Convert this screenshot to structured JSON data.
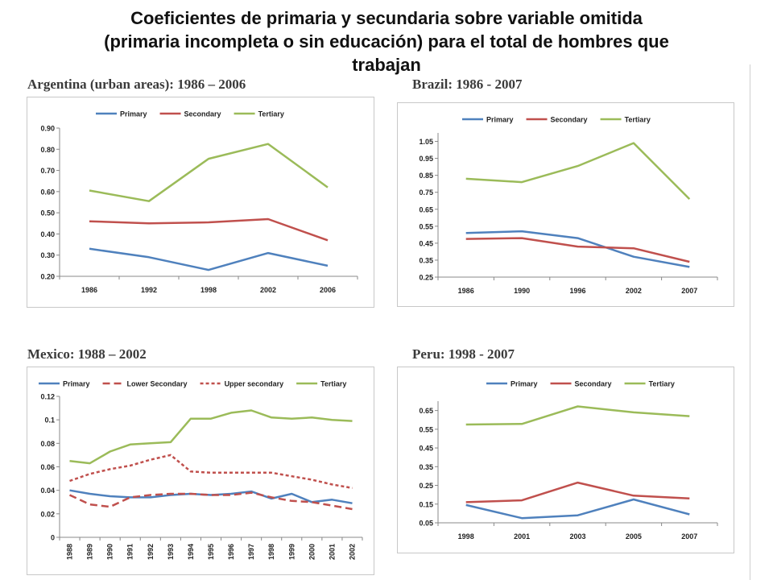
{
  "title_lines": [
    "Coeficientes de primaria y secundaria sobre variable omitida",
    "(primaria incompleta o sin educación) para el total de hombres que",
    "trabajan"
  ],
  "colors": {
    "primary": "#4f81bd",
    "secondary": "#c0504d",
    "tertiary": "#9bbb59",
    "lower_secondary": "#c0504d",
    "upper_secondary": "#c0504d"
  },
  "chart_data": [
    {
      "type": "line",
      "title": "Argentina (urban areas): 1986 – 2006",
      "categories": [
        "1986",
        "1992",
        "1998",
        "2002",
        "2006"
      ],
      "ylim": [
        0.2,
        0.9
      ],
      "yticks": [
        "0.20",
        "0.30",
        "0.40",
        "0.50",
        "0.60",
        "0.70",
        "0.80",
        "0.90"
      ],
      "legend": "top-center",
      "series": [
        {
          "name": "Primary",
          "color": "#4f81bd",
          "values": [
            0.33,
            0.29,
            0.23,
            0.31,
            0.25
          ]
        },
        {
          "name": "Secondary",
          "color": "#c0504d",
          "values": [
            0.46,
            0.45,
            0.455,
            0.47,
            0.37
          ]
        },
        {
          "name": "Tertiary",
          "color": "#9bbb59",
          "values": [
            0.605,
            0.555,
            0.755,
            0.825,
            0.62
          ]
        }
      ]
    },
    {
      "type": "line",
      "title": "Brazil: 1986 - 2007",
      "categories": [
        "1986",
        "1990",
        "1996",
        "2002",
        "2007"
      ],
      "ylim": [
        0.25,
        1.1
      ],
      "yticks": [
        "0.25",
        "0.35",
        "0.45",
        "0.55",
        "0.65",
        "0.75",
        "0.85",
        "0.95",
        "1.05"
      ],
      "legend": "top-center",
      "series": [
        {
          "name": "Primary",
          "color": "#4f81bd",
          "values": [
            0.51,
            0.52,
            0.48,
            0.37,
            0.31
          ]
        },
        {
          "name": "Secondary",
          "color": "#c0504d",
          "values": [
            0.475,
            0.48,
            0.43,
            0.42,
            0.34
          ]
        },
        {
          "name": "Tertiary",
          "color": "#9bbb59",
          "values": [
            0.83,
            0.81,
            0.905,
            1.04,
            0.71
          ]
        }
      ]
    },
    {
      "type": "line",
      "title": "Mexico: 1988 – 2002",
      "categories": [
        "1988",
        "1989",
        "1990",
        "1991",
        "1992",
        "1993",
        "1994",
        "1995",
        "1996",
        "1997",
        "1998",
        "1999",
        "2000",
        "2001",
        "2002"
      ],
      "ylim": [
        0,
        0.12
      ],
      "yticks": [
        "0",
        "0.02",
        "0.04",
        "0.06",
        "0.08",
        "0.1",
        "0.12"
      ],
      "legend": "top-center",
      "series": [
        {
          "name": "Primary",
          "color": "#4f81bd",
          "dash": "solid",
          "values": [
            0.04,
            0.037,
            0.035,
            0.034,
            0.034,
            0.036,
            0.037,
            0.036,
            0.037,
            0.039,
            0.033,
            0.037,
            0.03,
            0.032,
            0.029
          ]
        },
        {
          "name": "Lower Secondary",
          "color": "#c0504d",
          "dash": "long",
          "values": [
            0.036,
            0.028,
            0.026,
            0.034,
            0.036,
            0.037,
            0.037,
            0.036,
            0.036,
            0.038,
            0.034,
            0.031,
            0.03,
            0.027,
            0.024
          ]
        },
        {
          "name": "Upper secondary",
          "color": "#c0504d",
          "dash": "short",
          "values": [
            0.048,
            0.054,
            0.058,
            0.061,
            0.066,
            0.07,
            0.056,
            0.055,
            0.055,
            0.055,
            0.055,
            0.052,
            0.049,
            0.045,
            0.042
          ]
        },
        {
          "name": "Tertiary",
          "color": "#9bbb59",
          "dash": "solid",
          "values": [
            0.065,
            0.063,
            0.073,
            0.079,
            0.08,
            0.081,
            0.101,
            0.101,
            0.106,
            0.108,
            0.102,
            0.101,
            0.102,
            0.1,
            0.099
          ]
        }
      ]
    },
    {
      "type": "line",
      "title": "Peru: 1998 - 2007",
      "categories": [
        "1998",
        "2001",
        "2003",
        "2005",
        "2007"
      ],
      "ylim": [
        0.05,
        0.7
      ],
      "yticks": [
        "0.05",
        "0.15",
        "0.25",
        "0.35",
        "0.45",
        "0.55",
        "0.65"
      ],
      "legend": "top-center",
      "series": [
        {
          "name": "Primary",
          "color": "#4f81bd",
          "values": [
            0.145,
            0.075,
            0.09,
            0.175,
            0.095
          ]
        },
        {
          "name": "Secondary",
          "color": "#c0504d",
          "values": [
            0.16,
            0.17,
            0.265,
            0.195,
            0.18
          ]
        },
        {
          "name": "Tertiary",
          "color": "#9bbb59",
          "values": [
            0.575,
            0.578,
            0.672,
            0.64,
            0.62
          ]
        }
      ]
    }
  ]
}
